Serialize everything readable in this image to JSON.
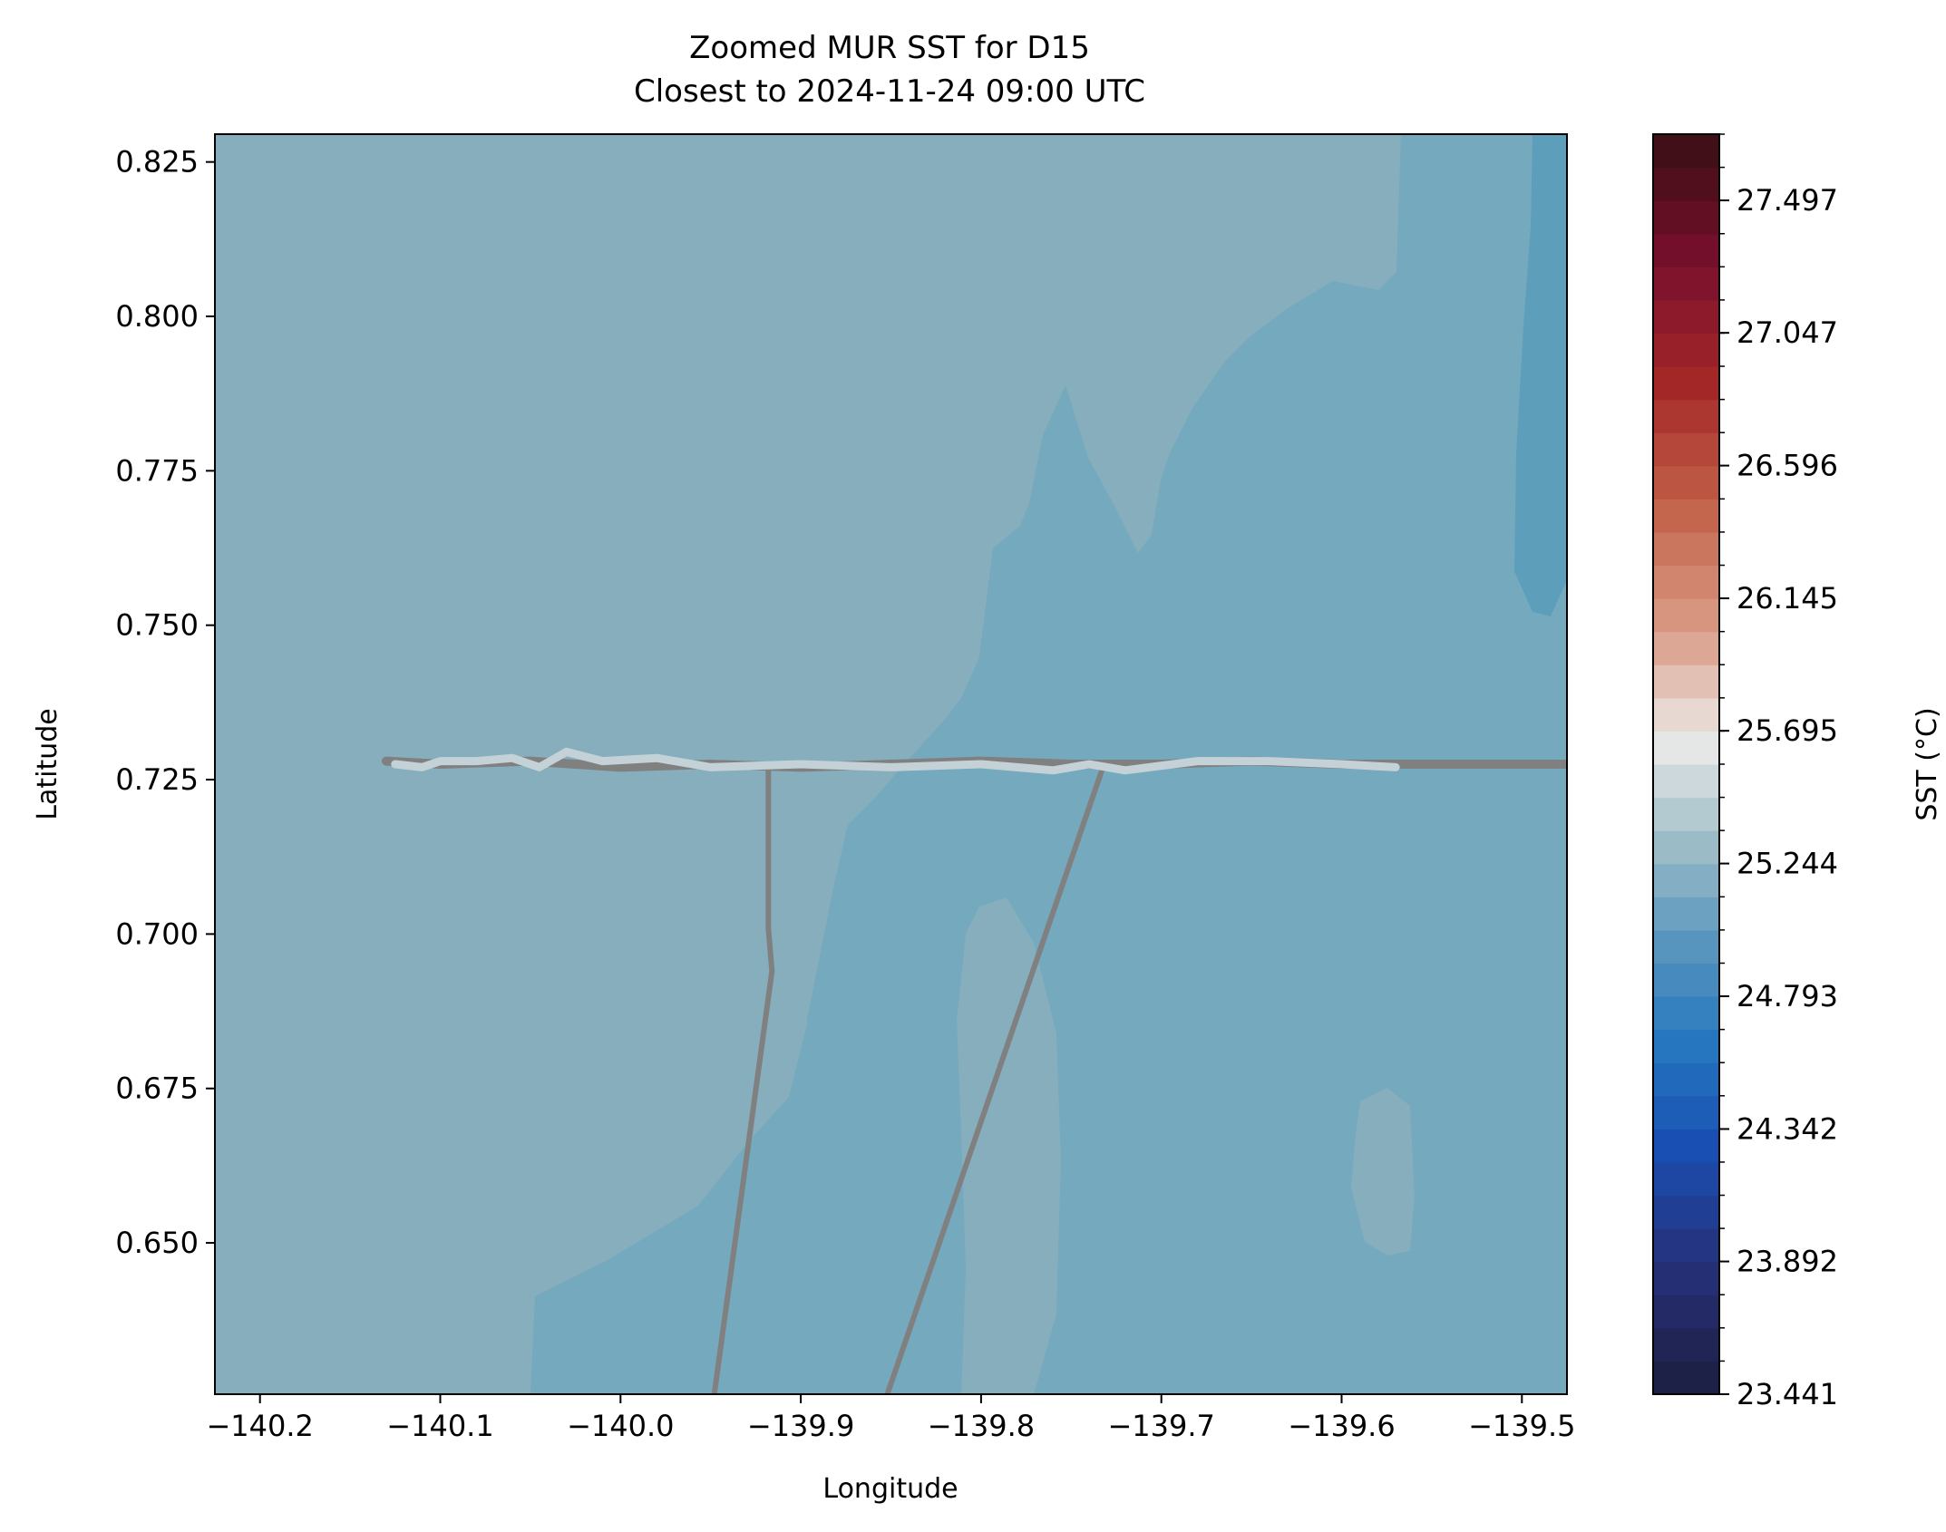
{
  "figure": {
    "title_line1": "Zoomed MUR SST for D15",
    "title_line2": "Closest to 2024-11-24 09:00 UTC"
  },
  "chart_data": {
    "type": "heatmap",
    "title": "Zoomed MUR SST for D15\nClosest to 2024-11-24 09:00 UTC",
    "xlabel": "Longitude",
    "ylabel": "Latitude",
    "xlim": [
      -140.225,
      -139.475
    ],
    "ylim": [
      0.6255,
      0.8295
    ],
    "xticks": [
      -140.2,
      -140.1,
      -140.0,
      -139.9,
      -139.8,
      -139.7,
      -139.6,
      -139.5
    ],
    "xtick_labels": [
      "−140.2",
      "−140.1",
      "−140.0",
      "−139.9",
      "−139.8",
      "−139.7",
      "−139.6",
      "−139.5"
    ],
    "yticks": [
      0.65,
      0.675,
      0.7,
      0.725,
      0.75,
      0.775,
      0.8,
      0.825
    ],
    "ytick_labels": [
      "0.650",
      "0.675",
      "0.700",
      "0.725",
      "0.750",
      "0.775",
      "0.800",
      "0.825"
    ],
    "grid": false,
    "colorbar": {
      "label": "SST (°C)",
      "vmin": 23.441,
      "vmax": 27.722,
      "levels": 38,
      "ticks": [
        23.441,
        23.892,
        24.342,
        24.793,
        25.244,
        25.695,
        26.145,
        26.596,
        27.047,
        27.497
      ],
      "tick_labels": [
        "23.441",
        "23.892",
        "24.342",
        "24.793",
        "25.244",
        "25.695",
        "26.145",
        "26.596",
        "27.047",
        "27.497"
      ],
      "colormap": "balance"
    },
    "sst_field_approx": {
      "description_levels_degC": [
        25.38,
        25.27,
        25.16,
        25.05,
        24.94,
        24.83
      ],
      "west_edge_max": 25.38,
      "east_edge_min": 24.83
    },
    "tracks": [
      {
        "color": "#808080",
        "points": [
          [
            -140.13,
            0.728
          ],
          [
            -140.1,
            0.7275
          ],
          [
            -140.05,
            0.728
          ],
          [
            -140.0,
            0.727
          ],
          [
            -139.95,
            0.7275
          ],
          [
            -139.9,
            0.727
          ],
          [
            -139.85,
            0.7275
          ],
          [
            -139.8,
            0.728
          ],
          [
            -139.75,
            0.7275
          ],
          [
            -139.7,
            0.7275
          ],
          [
            -139.65,
            0.728
          ],
          [
            -139.6,
            0.7275
          ],
          [
            -139.55,
            0.7275
          ],
          [
            -139.5,
            0.7275
          ],
          [
            -139.475,
            0.7275
          ]
        ]
      },
      {
        "color": "#808080",
        "points": [
          [
            -139.918,
            0.7265
          ],
          [
            -139.918,
            0.701
          ],
          [
            -139.916,
            0.694
          ],
          [
            -139.948,
            0.6255
          ]
        ]
      },
      {
        "color": "#808080",
        "points": [
          [
            -139.733,
            0.7265
          ],
          [
            -139.852,
            0.6255
          ]
        ]
      },
      {
        "color": "#c4d2d8",
        "points": [
          [
            -140.125,
            0.7275
          ],
          [
            -140.11,
            0.727
          ],
          [
            -140.1,
            0.728
          ],
          [
            -140.08,
            0.728
          ],
          [
            -140.06,
            0.7285
          ],
          [
            -140.045,
            0.727
          ],
          [
            -140.03,
            0.7295
          ],
          [
            -140.01,
            0.728
          ],
          [
            -139.98,
            0.7285
          ],
          [
            -139.95,
            0.727
          ],
          [
            -139.9,
            0.7275
          ],
          [
            -139.85,
            0.727
          ],
          [
            -139.8,
            0.7275
          ],
          [
            -139.76,
            0.7265
          ],
          [
            -139.74,
            0.7275
          ],
          [
            -139.72,
            0.7265
          ],
          [
            -139.68,
            0.728
          ],
          [
            -139.64,
            0.728
          ],
          [
            -139.6,
            0.7275
          ],
          [
            -139.57,
            0.727
          ]
        ]
      }
    ]
  }
}
